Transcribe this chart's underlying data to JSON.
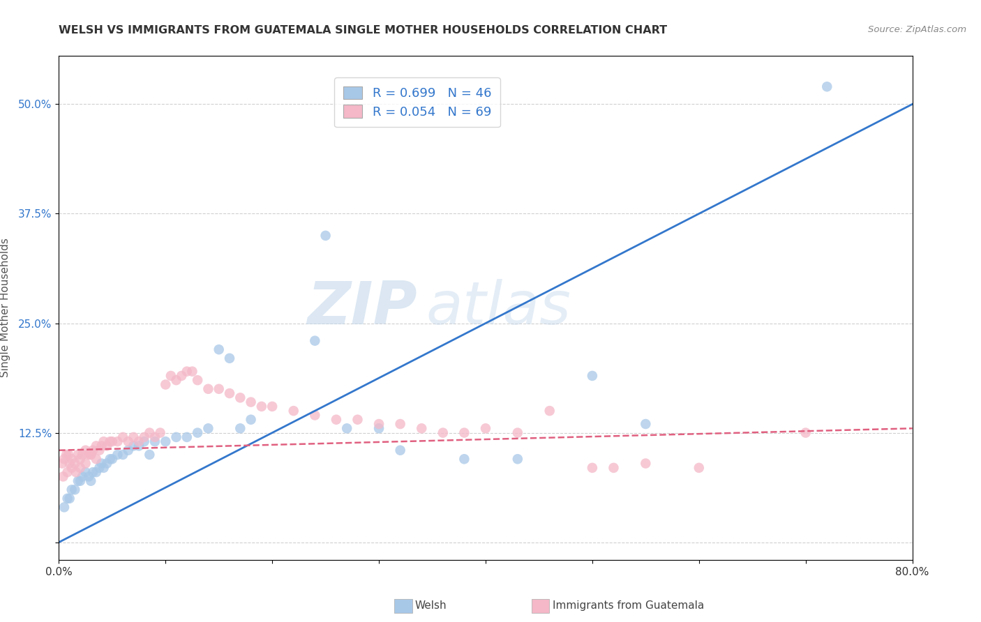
{
  "title": "WELSH VS IMMIGRANTS FROM GUATEMALA SINGLE MOTHER HOUSEHOLDS CORRELATION CHART",
  "source_text": "Source: ZipAtlas.com",
  "ylabel": "Single Mother Households",
  "watermark_zip": "ZIP",
  "watermark_atlas": "atlas",
  "blue_label": "Welsh",
  "pink_label": "Immigrants from Guatemala",
  "blue_R": 0.699,
  "blue_N": 46,
  "pink_R": 0.054,
  "pink_N": 69,
  "xlim": [
    0.0,
    0.8
  ],
  "ylim": [
    -0.02,
    0.555
  ],
  "yticks": [
    0.0,
    0.125,
    0.25,
    0.375,
    0.5
  ],
  "ytick_labels": [
    "",
    "12.5%",
    "25.0%",
    "37.5%",
    "50.0%"
  ],
  "xticks": [
    0.0,
    0.1,
    0.2,
    0.3,
    0.4,
    0.5,
    0.6,
    0.7,
    0.8
  ],
  "xtick_labels": [
    "0.0%",
    "",
    "",
    "",
    "",
    "",
    "",
    "",
    "80.0%"
  ],
  "blue_color": "#a8c8e8",
  "blue_line_color": "#3377cc",
  "pink_color": "#f4b8c8",
  "pink_line_color": "#e06080",
  "blue_scatter_x": [
    0.005,
    0.008,
    0.01,
    0.012,
    0.015,
    0.018,
    0.02,
    0.022,
    0.025,
    0.028,
    0.03,
    0.032,
    0.035,
    0.038,
    0.04,
    0.042,
    0.045,
    0.048,
    0.05,
    0.055,
    0.06,
    0.065,
    0.07,
    0.075,
    0.08,
    0.085,
    0.09,
    0.1,
    0.11,
    0.12,
    0.13,
    0.14,
    0.15,
    0.16,
    0.17,
    0.18,
    0.24,
    0.25,
    0.27,
    0.3,
    0.32,
    0.38,
    0.43,
    0.5,
    0.55,
    0.72
  ],
  "blue_scatter_y": [
    0.04,
    0.05,
    0.05,
    0.06,
    0.06,
    0.07,
    0.07,
    0.075,
    0.08,
    0.075,
    0.07,
    0.08,
    0.08,
    0.085,
    0.09,
    0.085,
    0.09,
    0.095,
    0.095,
    0.1,
    0.1,
    0.105,
    0.11,
    0.11,
    0.115,
    0.1,
    0.115,
    0.115,
    0.12,
    0.12,
    0.125,
    0.13,
    0.22,
    0.21,
    0.13,
    0.14,
    0.23,
    0.35,
    0.13,
    0.13,
    0.105,
    0.095,
    0.095,
    0.19,
    0.135,
    0.52
  ],
  "pink_scatter_x": [
    0.003,
    0.005,
    0.007,
    0.009,
    0.01,
    0.012,
    0.015,
    0.018,
    0.02,
    0.022,
    0.025,
    0.028,
    0.03,
    0.032,
    0.035,
    0.038,
    0.04,
    0.042,
    0.045,
    0.048,
    0.05,
    0.055,
    0.06,
    0.065,
    0.07,
    0.075,
    0.08,
    0.085,
    0.09,
    0.095,
    0.1,
    0.105,
    0.11,
    0.115,
    0.12,
    0.125,
    0.13,
    0.14,
    0.15,
    0.16,
    0.17,
    0.18,
    0.19,
    0.2,
    0.22,
    0.24,
    0.26,
    0.28,
    0.3,
    0.32,
    0.34,
    0.36,
    0.38,
    0.4,
    0.43,
    0.46,
    0.5,
    0.52,
    0.55,
    0.6,
    0.004,
    0.008,
    0.012,
    0.016,
    0.02,
    0.025,
    0.03,
    0.035,
    0.7
  ],
  "pink_scatter_y": [
    0.09,
    0.095,
    0.1,
    0.1,
    0.09,
    0.095,
    0.09,
    0.1,
    0.095,
    0.1,
    0.105,
    0.1,
    0.1,
    0.105,
    0.11,
    0.105,
    0.11,
    0.115,
    0.11,
    0.115,
    0.115,
    0.115,
    0.12,
    0.115,
    0.12,
    0.115,
    0.12,
    0.125,
    0.12,
    0.125,
    0.18,
    0.19,
    0.185,
    0.19,
    0.195,
    0.195,
    0.185,
    0.175,
    0.175,
    0.17,
    0.165,
    0.16,
    0.155,
    0.155,
    0.15,
    0.145,
    0.14,
    0.14,
    0.135,
    0.135,
    0.13,
    0.125,
    0.125,
    0.13,
    0.125,
    0.15,
    0.085,
    0.085,
    0.09,
    0.085,
    0.075,
    0.08,
    0.085,
    0.08,
    0.085,
    0.09,
    0.1,
    0.095,
    0.125
  ],
  "blue_trendline_x": [
    0.0,
    0.8
  ],
  "blue_trendline_y": [
    0.0,
    0.5
  ],
  "pink_trendline_x": [
    0.0,
    0.8
  ],
  "pink_trendline_y": [
    0.105,
    0.13
  ],
  "background_color": "#ffffff",
  "grid_color": "#d0d0d0",
  "tick_color": "#3377cc"
}
